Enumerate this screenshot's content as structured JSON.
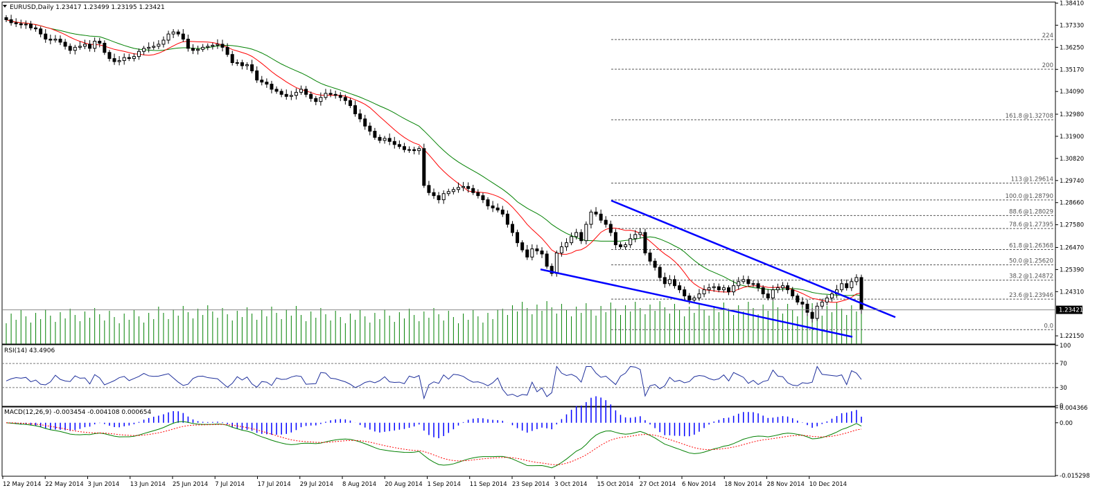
{
  "chart_data": [
    {
      "type": "candlestick",
      "header": "EURUSD,Daily  1.23417 1.23499 1.23195 1.23421",
      "symbol": "EURUSD",
      "timeframe": "Daily",
      "last_price": "1.23421",
      "ylim": [
        1.2175,
        1.3846
      ],
      "y_ticks": [
        "1.38410",
        "1.37330",
        "1.36250",
        "1.35170",
        "1.34090",
        "1.32980",
        "1.31900",
        "1.30820",
        "1.29740",
        "1.28660",
        "1.27580",
        "1.26470",
        "1.25390",
        "1.24310",
        "1.23421",
        "1.22150"
      ],
      "x_ticks": [
        "12 May 2014",
        "22 May 2014",
        "3 Jun 2014",
        "13 Jun 2014",
        "25 Jun 2014",
        "7 Jul 2014",
        "17 Jul 2014",
        "29 Jul 2014",
        "8 Aug 2014",
        "20 Aug 2014",
        "1 Sep 2014",
        "11 Sep 2014",
        "23 Sep 2014",
        "3 Oct 2014",
        "15 Oct 2014",
        "27 Oct 2014",
        "6 Nov 2014",
        "18 Nov 2014",
        "28 Nov 2014",
        "10 Dec 2014"
      ],
      "closes": [
        1.376,
        1.3745,
        1.374,
        1.3735,
        1.3738,
        1.372,
        1.3715,
        1.369,
        1.3665,
        1.366,
        1.3665,
        1.365,
        1.363,
        1.361,
        1.3625,
        1.363,
        1.364,
        1.362,
        1.3655,
        1.3645,
        1.36,
        1.357,
        1.3555,
        1.356,
        1.3575,
        1.357,
        1.358,
        1.3605,
        1.362,
        1.3625,
        1.363,
        1.364,
        1.366,
        1.369,
        1.37,
        1.369,
        1.3665,
        1.362,
        1.361,
        1.3615,
        1.3625,
        1.363,
        1.3635,
        1.364,
        1.3625,
        1.359,
        1.355,
        1.355,
        1.3535,
        1.354,
        1.351,
        1.3465,
        1.3455,
        1.3445,
        1.342,
        1.341,
        1.3395,
        1.3385,
        1.339,
        1.3405,
        1.342,
        1.3395,
        1.3375,
        1.336,
        1.338,
        1.34,
        1.3395,
        1.339,
        1.338,
        1.3365,
        1.334,
        1.33,
        1.3275,
        1.324,
        1.3215,
        1.3185,
        1.317,
        1.318,
        1.3165,
        1.315,
        1.314,
        1.3125,
        1.3125,
        1.312,
        1.313,
        1.295,
        1.2915,
        1.29,
        1.288,
        1.291,
        1.292,
        1.293,
        1.294,
        1.2945,
        1.2935,
        1.2915,
        1.29,
        1.288,
        1.285,
        1.284,
        1.283,
        1.281,
        1.276,
        1.272,
        1.267,
        1.2635,
        1.26,
        1.264,
        1.263,
        1.2615,
        1.2555,
        1.252,
        1.262,
        1.265,
        1.267,
        1.27,
        1.272,
        1.268,
        1.276,
        1.282,
        1.281,
        1.278,
        1.276,
        1.272,
        1.266,
        1.265,
        1.266,
        1.269,
        1.271,
        1.272,
        1.262,
        1.258,
        1.255,
        1.25,
        1.247,
        1.249,
        1.246,
        1.244,
        1.241,
        1.239,
        1.24,
        1.242,
        1.244,
        1.245,
        1.2455,
        1.244,
        1.245,
        1.243,
        1.246,
        1.248,
        1.249,
        1.247,
        1.247,
        1.245,
        1.242,
        1.24,
        1.244,
        1.245,
        1.246,
        1.244,
        1.241,
        1.238,
        1.237,
        1.233,
        1.23,
        1.236,
        1.238,
        1.24,
        1.242,
        1.244,
        1.247,
        1.245,
        1.248,
        1.25,
        1.2342
      ],
      "fibonacci_levels": [
        {
          "ratio": "224",
          "price": null,
          "y": 1.3663
        },
        {
          "ratio": "200",
          "price": null,
          "y": 1.3518
        },
        {
          "ratio": "161.8",
          "price": "@1.32708",
          "y": 1.32708
        },
        {
          "ratio": "113",
          "price": "@1.29614",
          "y": 1.29614
        },
        {
          "ratio": "100.0",
          "price": "@1.28790",
          "y": 1.2879
        },
        {
          "ratio": "88.6",
          "price": "@1.28029",
          "y": 1.28029
        },
        {
          "ratio": "78.6",
          "price": "@1.27395",
          "y": 1.27395
        },
        {
          "ratio": "61.8",
          "price": "@1.26368",
          "y": 1.26368
        },
        {
          "ratio": "50.0",
          "price": "@1.25620",
          "y": 1.2562
        },
        {
          "ratio": "38.2",
          "price": "@1.24872",
          "y": 1.24872
        },
        {
          "ratio": "23.6",
          "price": "@1.23946",
          "y": 1.23946
        },
        {
          "ratio": "0.0",
          "price": null,
          "y": 1.2245
        }
      ],
      "trendlines": [
        {
          "name": "upper-channel-line",
          "points": [
            [
              1.2876,
              0
            ],
            [
              1.2306,
              1
            ]
          ]
        },
        {
          "name": "lower-channel-line",
          "points": [
            [
              1.254,
              0
            ],
            [
              1.22,
              1
            ]
          ]
        }
      ],
      "colors": {
        "bull": "#ffffff",
        "bear": "#000000",
        "ma_fast": "#ff0000",
        "ma_slow": "#008000",
        "trendline": "#0000ff",
        "volume": "#008000"
      }
    },
    {
      "type": "line",
      "header": "RSI(14) 43.4906",
      "ylim": [
        0,
        100
      ],
      "y_ticks": [
        "100",
        "70",
        "30",
        "0"
      ],
      "levels": [
        70,
        30
      ],
      "last_value": 43.4906,
      "color": "#1e2f9b"
    },
    {
      "type": "macd",
      "header": "MACD(12,26,9) -0.003454 -0.004108 0.000654",
      "y_ticks": [
        "0.004366",
        "0.00",
        "-0.015298"
      ],
      "ylim": [
        -0.015298,
        0.004366
      ],
      "colors": {
        "histogram": "#0000ff",
        "main": "#008000",
        "signal": "#ff0000"
      }
    }
  ]
}
